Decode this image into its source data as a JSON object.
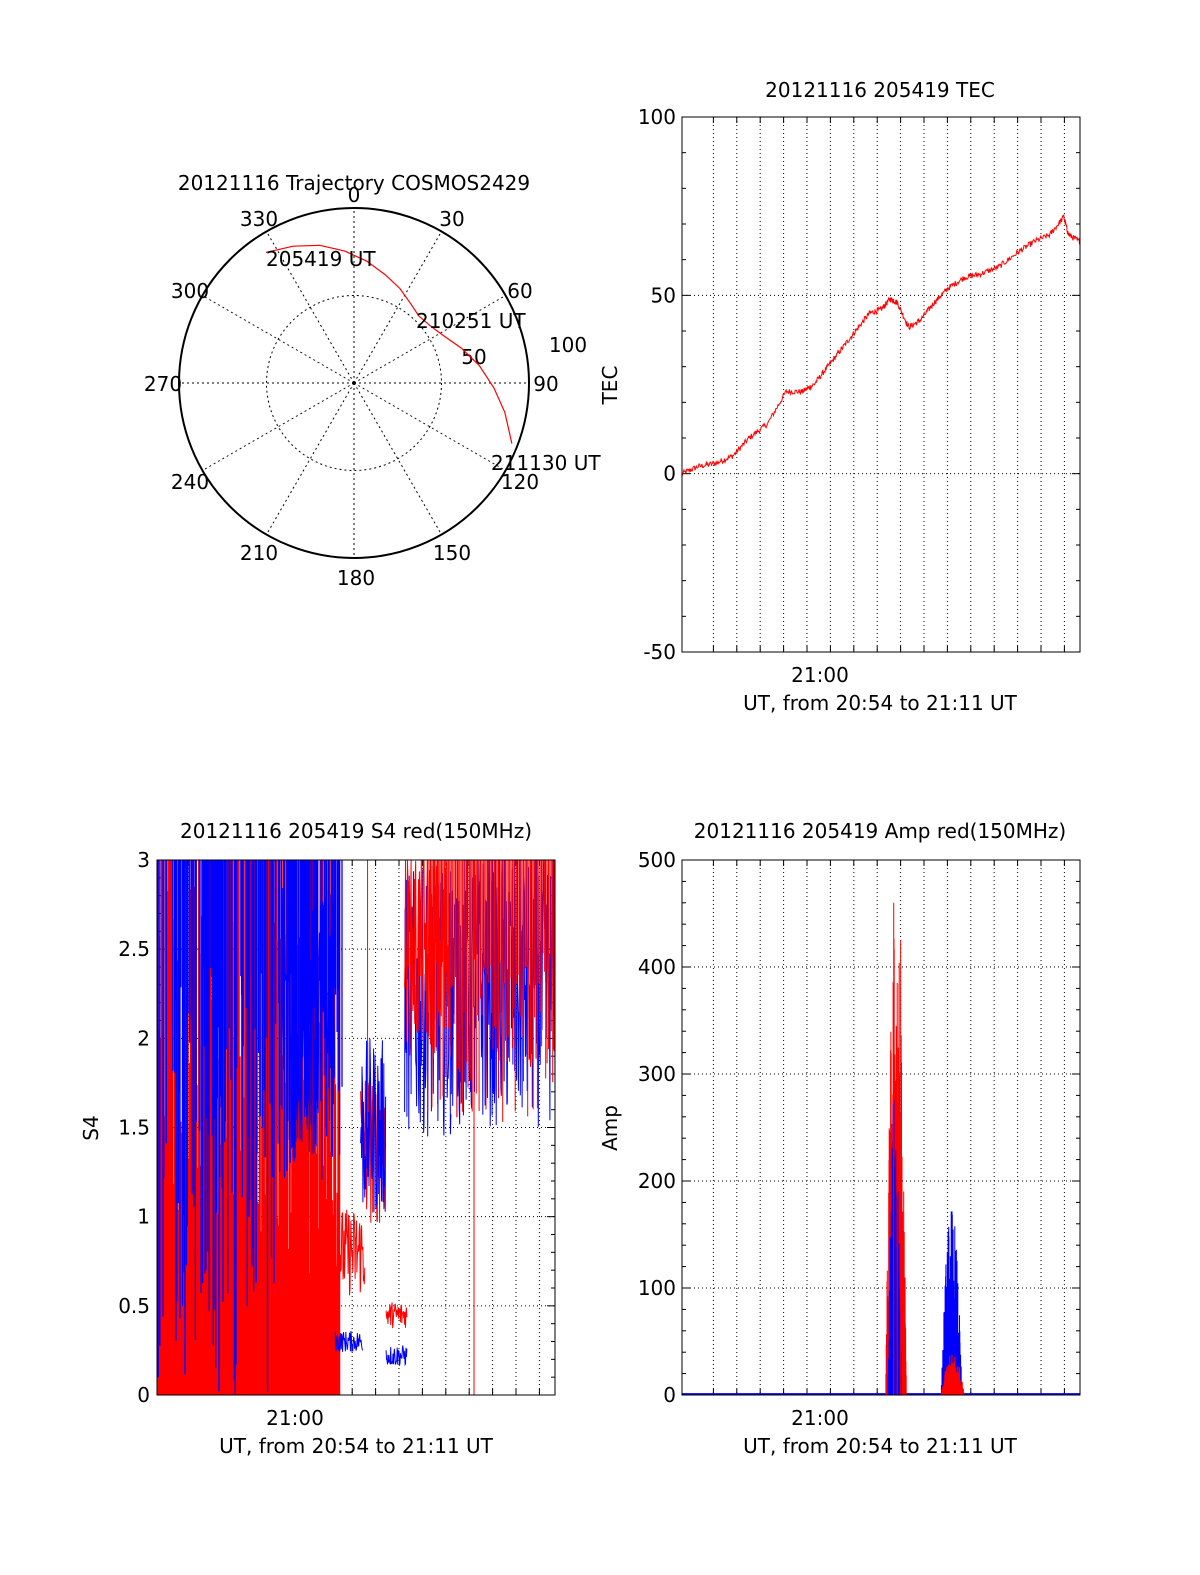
{
  "colors": {
    "red": "#ff0000",
    "blue": "#0000ff",
    "axis": "#000000",
    "grid": "#000000"
  },
  "trajectory": {
    "title": "20121116 Trajectory COSMOS2429",
    "azimuth_labels": [
      "0",
      "30",
      "60",
      "90",
      "120",
      "150",
      "180",
      "210",
      "240",
      "270",
      "300",
      "330"
    ],
    "radial_labels": [
      "50",
      "100"
    ],
    "points": [
      {
        "label": "205419 UT",
        "azimuth": 326,
        "elevation": 9
      },
      {
        "label": "210251 UT",
        "azimuth": 44,
        "elevation": 42
      },
      {
        "label": "211130 UT",
        "azimuth": 111,
        "elevation": 3
      }
    ],
    "path": [
      [
        326,
        9
      ],
      [
        336,
        13
      ],
      [
        346,
        17
      ],
      [
        356,
        22
      ],
      [
        6,
        27
      ],
      [
        16,
        32
      ],
      [
        26,
        36
      ],
      [
        36,
        40
      ],
      [
        44,
        42
      ],
      [
        53,
        41
      ],
      [
        62,
        38
      ],
      [
        72,
        32
      ],
      [
        82,
        25
      ],
      [
        92,
        18
      ],
      [
        101,
        11
      ],
      [
        111,
        3
      ]
    ]
  },
  "tec": {
    "title": "20121116 205419 TEC",
    "ylabel": "TEC",
    "xlabel": "UT, from 20:54 to 21:11 UT",
    "xtick_label": "21:00",
    "yticks": [
      "100",
      "50",
      "0",
      "-50"
    ],
    "chart_data": {
      "type": "line",
      "xlim_min": [
        54.3,
        71.5
      ],
      "ylim": [
        -50,
        100
      ],
      "series": [
        {
          "color": "red",
          "x": [
            54.3,
            55.0,
            55.8,
            56.5,
            57.2,
            58.0,
            58.8,
            59.5,
            60.0,
            60.6,
            61.2,
            61.8,
            62.4,
            62.9,
            63.3,
            63.6,
            64.1,
            64.6,
            65.2,
            65.8,
            66.5,
            67.2,
            68.0,
            68.8,
            69.5,
            70.2,
            70.8,
            71.0,
            71.5
          ],
          "y": [
            0,
            2,
            3,
            5,
            10,
            14,
            23,
            23,
            25,
            30,
            35,
            40,
            45,
            46,
            49,
            48,
            41,
            43,
            48,
            52,
            55,
            56,
            58,
            62,
            65,
            67,
            72,
            67,
            65
          ]
        }
      ]
    }
  },
  "s4": {
    "title": "20121116 205419 S4 red(150MHz)",
    "ylabel": "S4",
    "xlabel": "UT, from 20:54 to 21:11 UT",
    "xtick_label": "21:00",
    "yticks": [
      "3",
      "2.5",
      "2",
      "1.5",
      "1",
      "0.5",
      "0"
    ],
    "chart_data": {
      "type": "line",
      "ylim": [
        0,
        3
      ],
      "segments_red": [
        [
          62.0,
          63.2,
          0.75,
          "noisy"
        ],
        [
          64.2,
          65.0,
          0.45,
          "noisy"
        ]
      ],
      "segments_blue": [
        [
          59.7,
          62.2,
          1.6,
          "high"
        ],
        [
          62.0,
          63.5,
          0.3,
          "low"
        ],
        [
          63.2,
          65.0,
          1.5,
          "mid"
        ],
        [
          64.5,
          65.2,
          0.2,
          "low"
        ],
        [
          65.0,
          71.5,
          1.8,
          "high"
        ]
      ]
    }
  },
  "amp": {
    "title": "20121116 205419 Amp red(150MHz)",
    "ylabel": "Amp",
    "xlabel": "UT, from 20:54 to 21:11 UT",
    "xtick_label": "21:00",
    "yticks": [
      "500",
      "400",
      "300",
      "200",
      "100",
      "0"
    ],
    "chart_data": {
      "type": "line",
      "ylim": [
        0,
        500
      ],
      "bursts": [
        {
          "color": "red",
          "start": 63.1,
          "end": 64.0,
          "peak": 460
        },
        {
          "color": "blue",
          "start": 63.2,
          "end": 63.8,
          "peak": 290
        },
        {
          "color": "blue",
          "start": 65.5,
          "end": 66.4,
          "peak": 178
        },
        {
          "color": "red",
          "start": 65.5,
          "end": 66.5,
          "peak": 40
        }
      ]
    }
  }
}
